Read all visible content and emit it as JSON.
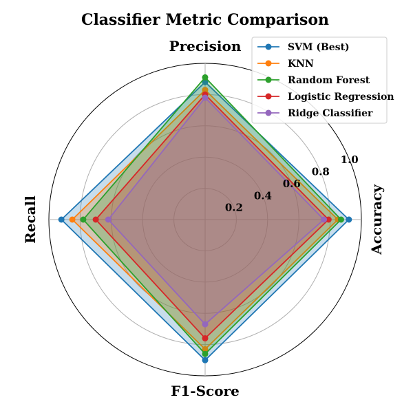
{
  "chart_data": {
    "type": "radar",
    "title": "Classifier Metric Comparison",
    "axes": [
      "Accuracy",
      "Precision",
      "Recall",
      "F1-Score"
    ],
    "rlim": [
      0,
      1.0
    ],
    "rticks": [
      0.2,
      0.4,
      0.6,
      0.8,
      1.0
    ],
    "rtick_labels": [
      "0.2",
      "0.4",
      "0.6",
      "0.8",
      "1.0"
    ],
    "grid": true,
    "legend_position": "top-right",
    "series": [
      {
        "name": "SVM (Best)",
        "color": "#1f77b4",
        "values": [
          0.92,
          0.88,
          0.92,
          0.9
        ]
      },
      {
        "name": "KNN",
        "color": "#ff7f0e",
        "values": [
          0.85,
          0.83,
          0.85,
          0.83
        ]
      },
      {
        "name": "Random Forest",
        "color": "#2ca02c",
        "values": [
          0.87,
          0.91,
          0.78,
          0.86
        ]
      },
      {
        "name": "Logistic Regression",
        "color": "#d62728",
        "values": [
          0.79,
          0.8,
          0.7,
          0.76
        ]
      },
      {
        "name": "Ridge Classifier",
        "color": "#9467bd",
        "values": [
          0.76,
          0.78,
          0.62,
          0.67
        ]
      }
    ]
  }
}
